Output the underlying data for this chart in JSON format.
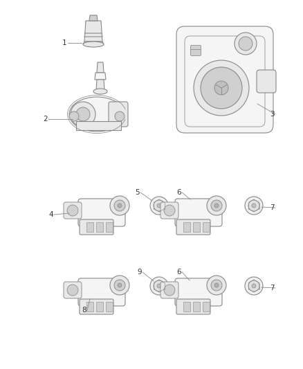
{
  "bg_color": "#ffffff",
  "fig_width": 4.38,
  "fig_height": 5.33,
  "dpi": 100,
  "edge_color": "#888888",
  "fill_light": "#f5f5f5",
  "fill_mid": "#e8e8e8",
  "fill_dark": "#d0d0d0",
  "lw": 0.8,
  "label_fontsize": 7.5,
  "label_color": "#333333",
  "line_color": "#888888"
}
